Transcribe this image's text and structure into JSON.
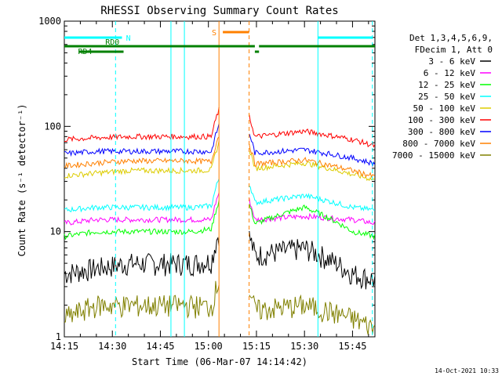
{
  "chart_data": {
    "type": "line",
    "title": "RHESSI Observing Summary Count Rates",
    "xlabel": "Start Time (06-Mar-07 14:14:42)",
    "ylabel": "Count Rate (s⁻¹ detector⁻¹)",
    "yscale": "log",
    "xlim_minutes_after_1415": [
      0,
      97
    ],
    "ylim": [
      1,
      1000
    ],
    "x_ticks": [
      "14:15",
      "14:30",
      "14:45",
      "15:00",
      "15:15",
      "15:30",
      "15:45"
    ],
    "x_tick_minutes": [
      0,
      15,
      30,
      45,
      60,
      75,
      90
    ],
    "y_ticks": [
      "1",
      "10",
      "100",
      "1000"
    ],
    "y_tick_values": [
      1,
      10,
      100,
      1000
    ],
    "legend_header": [
      "Det 1,3,4,5,6,9,",
      "FDecim 1, Att 0"
    ],
    "legend_position": "right",
    "series": [
      {
        "name": "3 - 6 keV",
        "color": "#000000",
        "base": 4.2,
        "x": [
          0,
          10,
          20,
          40,
          60,
          75,
          90,
          97
        ],
        "y": [
          4,
          4.5,
          5,
          5,
          6,
          7,
          4,
          3.5
        ]
      },
      {
        "name": "6 - 12 keV",
        "color": "#ff00ff",
        "base": 12.5,
        "x": [
          0,
          10,
          20,
          40,
          60,
          75,
          90,
          97
        ],
        "y": [
          12,
          13,
          13,
          13,
          13,
          14,
          13,
          12
        ]
      },
      {
        "name": "12 - 25 keV",
        "color": "#00ff00",
        "base": 9.5,
        "x": [
          0,
          10,
          20,
          40,
          60,
          75,
          90,
          97
        ],
        "y": [
          9,
          10,
          10,
          10,
          12,
          17,
          10,
          9
        ]
      },
      {
        "name": "25 - 50 keV",
        "color": "#00ffff",
        "base": 16,
        "x": [
          0,
          10,
          20,
          40,
          60,
          75,
          90,
          97
        ],
        "y": [
          16,
          17,
          17,
          17,
          19,
          22,
          17,
          16
        ]
      },
      {
        "name": "50 - 100 keV",
        "color": "#ddcc00",
        "base": 34,
        "x": [
          0,
          10,
          20,
          40,
          60,
          75,
          90,
          97
        ],
        "y": [
          34,
          36,
          38,
          38,
          40,
          45,
          35,
          31
        ]
      },
      {
        "name": "100 - 300 keV",
        "color": "#ff0000",
        "base": 75,
        "x": [
          0,
          10,
          20,
          40,
          60,
          75,
          90,
          97
        ],
        "y": [
          75,
          78,
          80,
          80,
          80,
          90,
          75,
          65
        ]
      },
      {
        "name": "300 - 800 keV",
        "color": "#0000ff",
        "base": 55,
        "x": [
          0,
          10,
          20,
          40,
          60,
          75,
          90,
          97
        ],
        "y": [
          55,
          58,
          58,
          58,
          56,
          60,
          50,
          44
        ]
      },
      {
        "name": "800 - 7000 keV",
        "color": "#ff8000",
        "base": 42,
        "x": [
          0,
          10,
          20,
          40,
          60,
          75,
          90,
          97
        ],
        "y": [
          42,
          45,
          47,
          47,
          44,
          48,
          38,
          33
        ]
      },
      {
        "name": "7000 - 15000 keV",
        "color": "#808000",
        "base": 2,
        "x": [
          0,
          10,
          20,
          40,
          60,
          75,
          90,
          97
        ],
        "y": [
          1.5,
          2,
          2,
          2,
          1.8,
          2,
          1.5,
          1.2
        ]
      }
    ],
    "flags": {
      "N": {
        "color": "#00ffff",
        "label": "N"
      },
      "S": {
        "color": "#ff8000",
        "label": "S"
      },
      "RD0": {
        "color": "#008000",
        "label": "RD0"
      },
      "RD4": {
        "color": "#008000",
        "label": "RD4"
      }
    },
    "grid": false
  },
  "footer": {
    "timestamp": "14-Oct-2021 10:33"
  }
}
